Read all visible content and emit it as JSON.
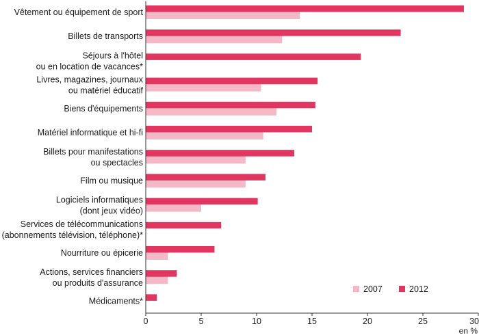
{
  "chart_data": {
    "type": "bar",
    "orientation": "horizontal",
    "categories": [
      [
        "Vêtement ou équipement de sport"
      ],
      [
        "Billets de transports"
      ],
      [
        "Séjours à l'hôtel",
        "ou en location de vacances*"
      ],
      [
        "Livres, magazines, journaux",
        "ou matériel éducatif"
      ],
      [
        "Biens d'équipements"
      ],
      [
        "Matériel informatique et hi-fi"
      ],
      [
        "Billets pour manifestations",
        "ou spectacles"
      ],
      [
        "Film ou musique"
      ],
      [
        "Logiciels informatiques",
        "(dont jeux vidéo)"
      ],
      [
        "Services de télécommunications",
        "(abonnements télévision, téléphone)*"
      ],
      [
        "Nourriture ou épicerie"
      ],
      [
        "Actions, services financiers",
        "ou produits d'assurance"
      ],
      [
        "Médicaments*"
      ]
    ],
    "series": [
      {
        "name": "2012",
        "color": "#e0365f",
        "values": [
          28.7,
          23.0,
          19.4,
          15.5,
          15.3,
          15.0,
          13.4,
          10.8,
          10.1,
          6.8,
          6.2,
          2.8,
          1.0
        ]
      },
      {
        "name": "2007",
        "color": "#f4b8c6",
        "values": [
          13.9,
          12.3,
          null,
          10.4,
          11.8,
          10.6,
          9.0,
          9.0,
          5.0,
          null,
          2.0,
          2.0,
          null
        ]
      }
    ],
    "xaxis": {
      "min": 0,
      "max": 30,
      "ticks": [
        0,
        5,
        10,
        15,
        20,
        25,
        30
      ],
      "unit": "en %"
    },
    "legend_order": [
      "2007",
      "2012"
    ],
    "legend_position": "bottom-right",
    "grid": false
  }
}
